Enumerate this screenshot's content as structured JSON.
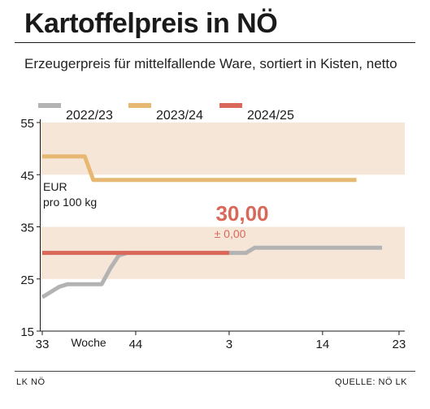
{
  "header": {
    "title": "Kartoffelpreis in NÖ",
    "subtitle": "Erzeugerpreis für mittelfallende Ware, sortiert in Kisten, netto"
  },
  "footer": {
    "left": "LK NÖ",
    "right": "QUELLE: NÖ LK"
  },
  "chart_data": {
    "type": "line",
    "title": "Kartoffelpreis in NÖ",
    "subtitle": "Erzeugerpreis für mittelfallende Ware, sortiert in Kisten, netto",
    "unit_label": [
      "EUR",
      "pro 100 kg"
    ],
    "xlabel": "Woche",
    "ylim": [
      15,
      55
    ],
    "yticks": [
      15,
      25,
      35,
      45,
      55
    ],
    "xticks": [
      {
        "label": "33",
        "index": 0
      },
      {
        "label": "44",
        "index": 11
      },
      {
        "label": "3",
        "index": 22
      },
      {
        "label": "14",
        "index": 33
      },
      {
        "label": "23",
        "index": 42
      }
    ],
    "bands": [
      [
        45,
        55
      ],
      [
        25,
        35
      ]
    ],
    "band_color": "#f5e6d8",
    "legend_position": "top",
    "series": [
      {
        "name": "2022/23",
        "color": "#b3b3b3",
        "points": [
          [
            0,
            21.5
          ],
          [
            2,
            23.5
          ],
          [
            3,
            24
          ],
          [
            7,
            24
          ],
          [
            8,
            27
          ],
          [
            9,
            29.5
          ],
          [
            10,
            30
          ],
          [
            22,
            30
          ],
          [
            24,
            30
          ],
          [
            25,
            31
          ],
          [
            40,
            31
          ]
        ]
      },
      {
        "name": "2023/24",
        "color": "#e6b871",
        "points": [
          [
            0,
            48.5
          ],
          [
            5,
            48.5
          ],
          [
            6,
            44
          ],
          [
            37,
            44
          ]
        ]
      },
      {
        "name": "2024/25",
        "color": "#d9685a",
        "points": [
          [
            0,
            30
          ],
          [
            22,
            30
          ]
        ]
      }
    ],
    "annotation": {
      "value": "30,00",
      "change": "± 0,00",
      "color": "#d9685a"
    }
  }
}
